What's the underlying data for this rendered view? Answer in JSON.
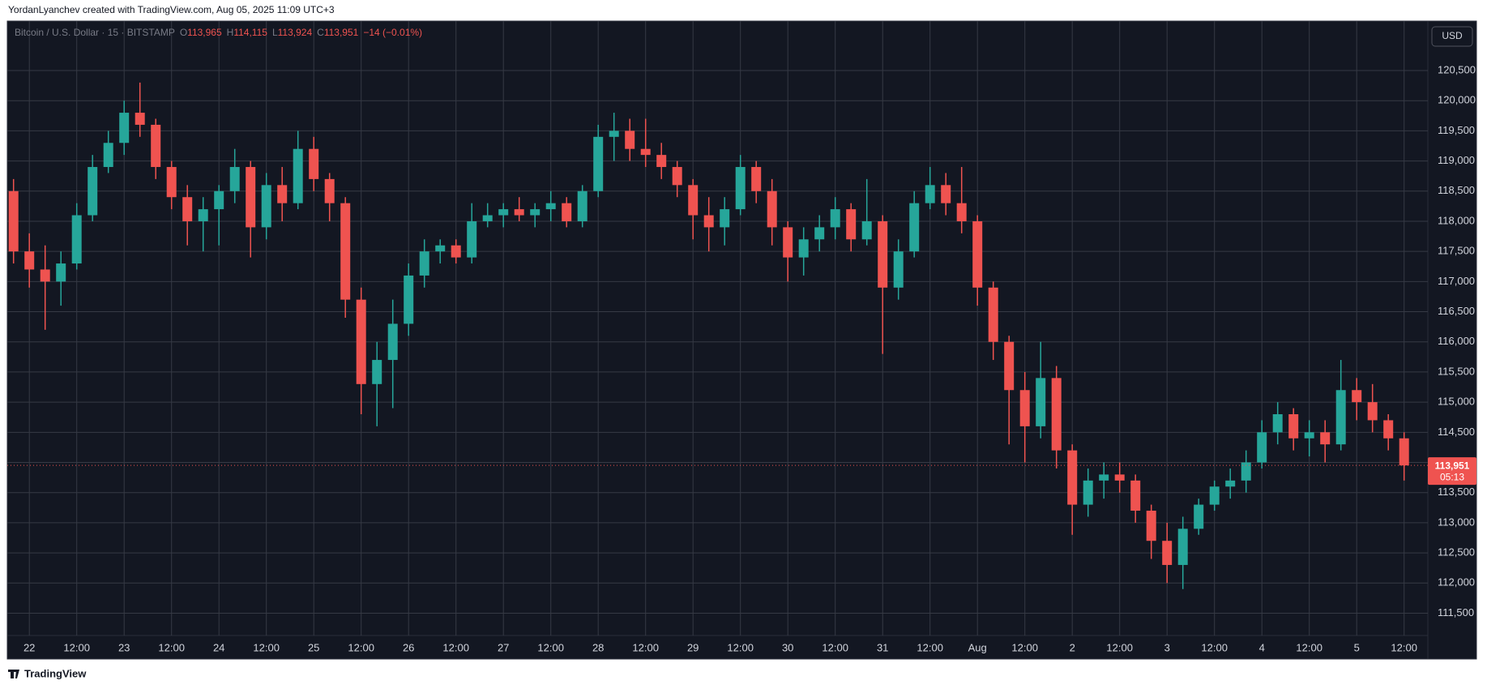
{
  "header": {
    "text": "YordanLyanchev created with TradingView.com, Aug 05, 2025 11:09 UTC+3"
  },
  "footer": {
    "brand": "TradingView"
  },
  "chart_data": {
    "type": "candlestick",
    "symbol": "Bitcoin / U.S. Dollar · 15 · BITSTAMP",
    "ohlc": [
      {
        "key": "O",
        "value": "113,965"
      },
      {
        "key": "H",
        "value": "114,115"
      },
      {
        "key": "L",
        "value": "113,924"
      },
      {
        "key": "C",
        "value": "113,951"
      }
    ],
    "change": "−14 (−0.01%)",
    "currency": "USD",
    "last_price": {
      "value": 113951,
      "label": "113,951"
    },
    "countdown": "05:13",
    "up_color": "#26a69a",
    "down_color": "#ef5350",
    "grid": true,
    "categories": [
      null,
      "22",
      null,
      null,
      "12:00",
      null,
      null,
      "23",
      null,
      null,
      "12:00",
      null,
      null,
      "24",
      null,
      null,
      "12:00",
      null,
      null,
      "25",
      null,
      null,
      "12:00",
      null,
      null,
      "26",
      null,
      null,
      "12:00",
      null,
      null,
      "27",
      null,
      null,
      "12:00",
      null,
      null,
      "28",
      null,
      null,
      "12:00",
      null,
      null,
      "29",
      null,
      null,
      "12:00",
      null,
      null,
      "30",
      null,
      null,
      "12:00",
      null,
      null,
      "31",
      null,
      null,
      "12:00",
      null,
      null,
      "Aug",
      null,
      null,
      "12:00",
      null,
      null,
      "2",
      null,
      null,
      "12:00",
      null,
      null,
      "3",
      null,
      null,
      "12:00",
      null,
      null,
      "4",
      null,
      null,
      "12:00",
      null,
      null,
      "5",
      null,
      null,
      "12:00"
    ],
    "open": [
      118500,
      117500,
      117200,
      117000,
      117300,
      118100,
      118900,
      119300,
      119800,
      119600,
      118900,
      118400,
      118000,
      118200,
      118500,
      118900,
      117900,
      118600,
      118300,
      119200,
      118700,
      118300,
      116700,
      115300,
      115700,
      116300,
      117100,
      117500,
      117600,
      117400,
      118000,
      118100,
      118200,
      118100,
      118200,
      118300,
      118000,
      118500,
      119400,
      119500,
      119200,
      119100,
      118900,
      118600,
      118100,
      117900,
      118200,
      118900,
      118500,
      117900,
      117400,
      117700,
      117900,
      118200,
      117700,
      118000,
      116900,
      117500,
      118300,
      118600,
      118300,
      118000,
      116900,
      116000,
      115200,
      114600,
      115400,
      114200,
      113300,
      113700,
      113800,
      113700,
      113200,
      112700,
      112300,
      112900,
      113300,
      113600,
      113700,
      114000,
      114500,
      114800,
      114400,
      114500,
      114300,
      115200,
      115000,
      114700,
      114400
    ],
    "high": [
      118700,
      117800,
      117600,
      117500,
      118300,
      119100,
      119500,
      120000,
      120300,
      119700,
      119000,
      118600,
      118400,
      118600,
      119200,
      119000,
      118800,
      118900,
      119500,
      119400,
      118800,
      118400,
      116900,
      116000,
      116700,
      117300,
      117700,
      117700,
      117700,
      118300,
      118300,
      118300,
      118400,
      118300,
      118500,
      118400,
      118600,
      119600,
      119800,
      119700,
      119700,
      119300,
      119000,
      118700,
      118400,
      118400,
      119100,
      119000,
      118700,
      118000,
      117900,
      118100,
      118400,
      118300,
      118700,
      118100,
      117700,
      118500,
      118900,
      118800,
      118900,
      118100,
      117000,
      116100,
      115500,
      116000,
      115600,
      114300,
      113900,
      114000,
      114000,
      113800,
      113300,
      113000,
      113100,
      113400,
      113700,
      113900,
      114200,
      114700,
      115000,
      114900,
      114700,
      114700,
      115700,
      115400,
      115300,
      114800,
      114500
    ],
    "low": [
      117300,
      116900,
      116200,
      116600,
      117200,
      118000,
      118800,
      119100,
      119400,
      118700,
      118200,
      117600,
      117500,
      117600,
      118300,
      117400,
      117700,
      118000,
      118200,
      118500,
      118000,
      116400,
      114800,
      114600,
      114900,
      116100,
      116900,
      117300,
      117300,
      117300,
      117900,
      117900,
      118000,
      117900,
      118000,
      117900,
      117900,
      118400,
      119000,
      119000,
      118900,
      118700,
      118400,
      117700,
      117500,
      117600,
      118100,
      118300,
      117600,
      117000,
      117100,
      117500,
      117700,
      117500,
      117600,
      115800,
      116700,
      117400,
      118200,
      118100,
      117800,
      116600,
      115700,
      114300,
      114000,
      114400,
      113900,
      112800,
      113100,
      113400,
      113500,
      113000,
      112400,
      112000,
      111900,
      112800,
      113200,
      113400,
      113500,
      113900,
      114300,
      114200,
      114100,
      114000,
      114200,
      114700,
      114500,
      114200,
      113700
    ],
    "close": [
      117500,
      117200,
      117000,
      117300,
      118100,
      118900,
      119300,
      119800,
      119600,
      118900,
      118400,
      118000,
      118200,
      118500,
      118900,
      117900,
      118600,
      118300,
      119200,
      118700,
      118300,
      116700,
      115300,
      115700,
      116300,
      117100,
      117500,
      117600,
      117400,
      118000,
      118100,
      118200,
      118100,
      118200,
      118300,
      118000,
      118500,
      119400,
      119500,
      119200,
      119100,
      118900,
      118600,
      118100,
      117900,
      118200,
      118900,
      118500,
      117900,
      117400,
      117700,
      117900,
      118200,
      117700,
      118000,
      116900,
      117500,
      118300,
      118600,
      118300,
      118000,
      116900,
      116000,
      115200,
      114600,
      115400,
      114200,
      113300,
      113700,
      113800,
      113700,
      113200,
      112700,
      112300,
      112900,
      113300,
      113600,
      113700,
      114000,
      114500,
      114800,
      114400,
      114500,
      114300,
      115200,
      115000,
      114700,
      114400,
      113951
    ],
    "ylim": [
      111130,
      121320
    ],
    "yticks": [
      {
        "value": 111500,
        "label": "111,500"
      },
      {
        "value": 112000,
        "label": "112,000"
      },
      {
        "value": 112500,
        "label": "112,500"
      },
      {
        "value": 113000,
        "label": "113,000"
      },
      {
        "value": 113500,
        "label": "113,500"
      },
      {
        "value": 114000,
        "label": "114,000"
      },
      {
        "value": 114500,
        "label": "114,500"
      },
      {
        "value": 115000,
        "label": "115,000"
      },
      {
        "value": 115500,
        "label": "115,500"
      },
      {
        "value": 116000,
        "label": "116,000"
      },
      {
        "value": 116500,
        "label": "116,500"
      },
      {
        "value": 117000,
        "label": "117,000"
      },
      {
        "value": 117500,
        "label": "117,500"
      },
      {
        "value": 118000,
        "label": "118,000"
      },
      {
        "value": 118500,
        "label": "118,500"
      },
      {
        "value": 119000,
        "label": "119,000"
      },
      {
        "value": 119500,
        "label": "119,500"
      },
      {
        "value": 120000,
        "label": "120,000"
      },
      {
        "value": 120500,
        "label": "120,500"
      }
    ]
  }
}
